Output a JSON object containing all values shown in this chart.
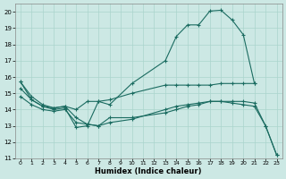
{
  "xlabel": "Humidex (Indice chaleur)",
  "bg_color": "#cce8e4",
  "grid_color": "#aad4cc",
  "line_color": "#1a6b60",
  "xlim_min": -0.5,
  "xlim_max": 23.5,
  "ylim_min": 11,
  "ylim_max": 20.5,
  "xticks": [
    0,
    1,
    2,
    3,
    4,
    5,
    6,
    7,
    8,
    9,
    10,
    11,
    12,
    13,
    14,
    15,
    16,
    17,
    18,
    19,
    20,
    21,
    22,
    23
  ],
  "yticks": [
    11,
    12,
    13,
    14,
    15,
    16,
    17,
    18,
    19,
    20
  ],
  "series": [
    {
      "points": [
        [
          0,
          15.7
        ],
        [
          1,
          14.6
        ],
        [
          2,
          14.2
        ],
        [
          3,
          14.0
        ],
        [
          4,
          14.1
        ],
        [
          5,
          12.9
        ],
        [
          6,
          13.0
        ],
        [
          7,
          14.5
        ],
        [
          8,
          14.3
        ],
        [
          10,
          15.6
        ],
        [
          13,
          17.0
        ],
        [
          14,
          18.5
        ],
        [
          15,
          19.2
        ],
        [
          16,
          19.2
        ],
        [
          17,
          20.05
        ],
        [
          18,
          20.1
        ],
        [
          19,
          19.5
        ],
        [
          20,
          18.6
        ],
        [
          21,
          15.6
        ]
      ]
    },
    {
      "points": [
        [
          0,
          15.7
        ],
        [
          1,
          14.8
        ],
        [
          2,
          14.3
        ],
        [
          3,
          14.1
        ],
        [
          4,
          14.2
        ],
        [
          5,
          14.0
        ],
        [
          6,
          14.5
        ],
        [
          7,
          14.5
        ],
        [
          8,
          14.6
        ],
        [
          10,
          15.0
        ],
        [
          13,
          15.5
        ],
        [
          14,
          15.5
        ],
        [
          15,
          15.5
        ],
        [
          16,
          15.5
        ],
        [
          17,
          15.5
        ],
        [
          18,
          15.6
        ],
        [
          19,
          15.6
        ],
        [
          20,
          15.6
        ],
        [
          21,
          15.6
        ]
      ]
    },
    {
      "points": [
        [
          0,
          15.3
        ],
        [
          1,
          14.6
        ],
        [
          2,
          14.2
        ],
        [
          3,
          14.1
        ],
        [
          4,
          14.2
        ],
        [
          5,
          13.5
        ],
        [
          6,
          13.1
        ],
        [
          7,
          13.0
        ],
        [
          8,
          13.5
        ],
        [
          10,
          13.5
        ],
        [
          13,
          13.8
        ],
        [
          14,
          14.0
        ],
        [
          15,
          14.2
        ],
        [
          16,
          14.3
        ],
        [
          17,
          14.5
        ],
        [
          18,
          14.5
        ],
        [
          19,
          14.4
        ],
        [
          20,
          14.3
        ],
        [
          21,
          14.2
        ],
        [
          22,
          13.0
        ],
        [
          23,
          11.2
        ]
      ]
    },
    {
      "points": [
        [
          0,
          14.8
        ],
        [
          1,
          14.3
        ],
        [
          2,
          14.0
        ],
        [
          3,
          13.9
        ],
        [
          4,
          14.0
        ],
        [
          5,
          13.2
        ],
        [
          6,
          13.1
        ],
        [
          7,
          13.0
        ],
        [
          8,
          13.2
        ],
        [
          10,
          13.4
        ],
        [
          13,
          14.0
        ],
        [
          14,
          14.2
        ],
        [
          15,
          14.3
        ],
        [
          16,
          14.4
        ],
        [
          17,
          14.5
        ],
        [
          18,
          14.5
        ],
        [
          19,
          14.5
        ],
        [
          20,
          14.5
        ],
        [
          21,
          14.4
        ],
        [
          22,
          13.0
        ],
        [
          23,
          11.2
        ]
      ]
    }
  ]
}
